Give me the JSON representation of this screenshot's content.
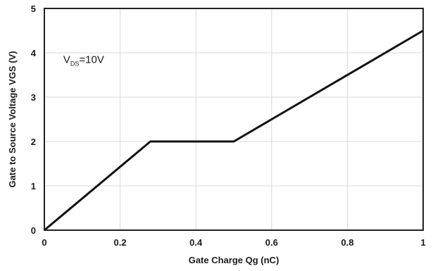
{
  "chart_data": {
    "type": "line",
    "title": "",
    "xlabel": "Gate Charge Qg (nC)",
    "ylabel": "Gate to Source Voltage VGS (V)",
    "xlim": [
      0,
      1
    ],
    "ylim": [
      0,
      5
    ],
    "x_ticks": [
      "0",
      "0.2",
      "0.4",
      "0.6",
      "0.8",
      "1"
    ],
    "y_ticks": [
      "0",
      "1",
      "2",
      "3",
      "4",
      "5"
    ],
    "grid": true,
    "legend": "none",
    "series": [
      {
        "x": [
          0,
          0.28,
          0.5,
          1.0
        ],
        "y": [
          0,
          2.0,
          2.0,
          4.5
        ]
      }
    ],
    "annotation": {
      "main": "V",
      "sub": "DS",
      "rest": "=10V",
      "x": 0.05,
      "y": 3.85
    },
    "line_color": "#111111",
    "grid_color": "#d9d9d9"
  }
}
